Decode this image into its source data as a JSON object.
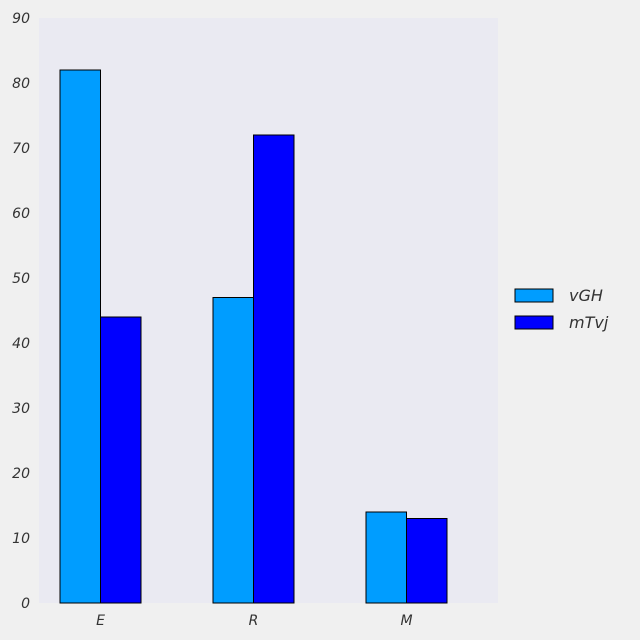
{
  "chart_data": {
    "type": "bar",
    "categories": [
      "E",
      "R",
      "M"
    ],
    "series": [
      {
        "name": "vGH",
        "values": [
          82,
          47,
          14
        ],
        "color": "#009dff"
      },
      {
        "name": "mTvj",
        "values": [
          44,
          72,
          13
        ],
        "color": "#0000ff"
      }
    ],
    "title": "",
    "xlabel": "",
    "ylabel": "",
    "ylim": [
      0,
      90
    ],
    "yticks": [
      0,
      10,
      20,
      30,
      40,
      50,
      60,
      70,
      80,
      90
    ],
    "grid": false,
    "legend": "right",
    "colors": {
      "plot_background": "#eaeaf2",
      "page_background": "#f0f0f0",
      "bar_edge": "#000000"
    }
  }
}
